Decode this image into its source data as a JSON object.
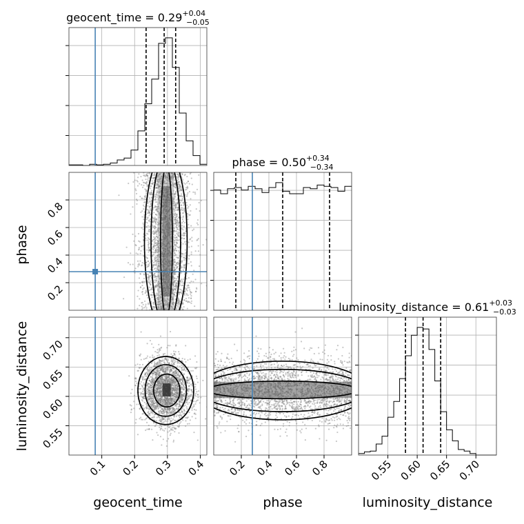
{
  "params": [
    "geocent_time",
    "phase",
    "luminosity_distance"
  ],
  "colors": {
    "truth": "#4682b4",
    "hist": "#000000",
    "grid": "#b0b0b0"
  },
  "chart_data": {
    "type": "corner",
    "axis_labels": {
      "geocent_time": "geocent_time",
      "phase": "phase",
      "luminosity_distance": "luminosity_distance"
    },
    "titles": [
      {
        "param": "geocent_time",
        "prefix": "geocent_time = ",
        "median": "0.29",
        "plus": "+0.04",
        "minus": "−0.05"
      },
      {
        "param": "phase",
        "prefix": "phase = ",
        "median": "0.50",
        "plus": "+0.34",
        "minus": "−0.34"
      },
      {
        "param": "luminosity_distance",
        "prefix": "luminosity_distance = ",
        "median": "0.61",
        "plus": "+0.03",
        "minus": "−0.03"
      }
    ],
    "ranges": {
      "geocent_time": [
        0.0,
        0.42
      ],
      "phase": [
        0.0,
        1.0
      ],
      "luminosity_distance": [
        0.5,
        0.735
      ]
    },
    "ticks": {
      "geocent_time": [
        0.1,
        0.2,
        0.3,
        0.4
      ],
      "phase": [
        0.2,
        0.4,
        0.6,
        0.8
      ],
      "luminosity_distance": [
        0.55,
        0.6,
        0.65,
        0.7
      ]
    },
    "tick_labels": {
      "geocent_time": [
        "0.1",
        "0.2",
        "0.3",
        "0.4"
      ],
      "phase": [
        "0.2",
        "0.4",
        "0.6",
        "0.8"
      ],
      "luminosity_distance": [
        "0.55",
        "0.60",
        "0.65",
        "0.70"
      ]
    },
    "truths": {
      "geocent_time": 0.08,
      "phase": 0.28,
      "luminosity_distance": null
    },
    "quantiles": {
      "geocent_time": [
        0.235,
        0.29,
        0.325
      ],
      "phase": [
        0.16,
        0.5,
        0.84
      ],
      "luminosity_distance": [
        0.58,
        0.61,
        0.64
      ]
    },
    "histograms": {
      "geocent_time": {
        "edges": [
          0.0,
          0.021,
          0.042,
          0.063,
          0.084,
          0.105,
          0.126,
          0.147,
          0.168,
          0.189,
          0.21,
          0.231,
          0.252,
          0.273,
          0.294,
          0.315,
          0.336,
          0.357,
          0.378,
          0.399,
          0.42
        ],
        "counts": [
          1,
          1,
          0,
          2,
          1,
          2,
          4,
          9,
          12,
          25,
          56,
          100,
          140,
          198,
          207,
          159,
          85,
          40,
          16,
          2
        ]
      },
      "phase": {
        "edges": [
          0.0,
          0.05,
          0.1,
          0.15,
          0.2,
          0.25,
          0.3,
          0.35,
          0.4,
          0.45,
          0.5,
          0.55,
          0.6,
          0.65,
          0.7,
          0.75,
          0.8,
          0.85,
          0.9,
          0.95,
          1.0
        ],
        "counts": [
          97,
          94,
          98,
          99,
          97,
          100,
          98,
          95,
          99,
          103,
          96,
          94,
          94,
          99,
          98,
          101,
          100,
          99,
          96,
          100
        ]
      },
      "luminosity_distance": {
        "edges": [
          0.5,
          0.51,
          0.52,
          0.53,
          0.54,
          0.55,
          0.56,
          0.57,
          0.58,
          0.59,
          0.6,
          0.61,
          0.62,
          0.63,
          0.64,
          0.65,
          0.66,
          0.67,
          0.68,
          0.69,
          0.7,
          0.71,
          0.72,
          0.735
        ],
        "counts": [
          2,
          4,
          5,
          14,
          24,
          48,
          68,
          97,
          126,
          152,
          162,
          160,
          134,
          94,
          55,
          32,
          18,
          7,
          5,
          2,
          0,
          0,
          0
        ]
      }
    }
  }
}
